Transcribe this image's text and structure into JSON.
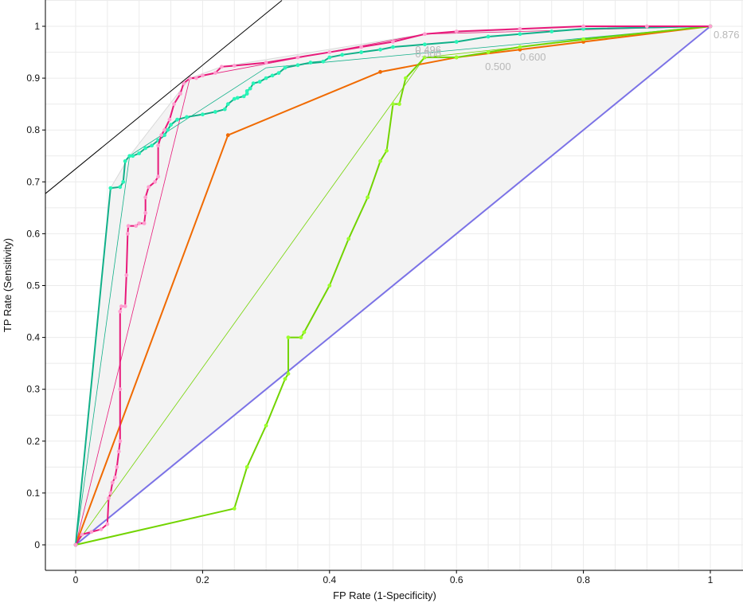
{
  "chart_data": {
    "type": "line",
    "xlabel": "FP Rate (1-Specificity)",
    "ylabel": "TP Rate (Sensitivity)",
    "xlim": [
      -0.05,
      1.05
    ],
    "ylim": [
      -0.05,
      1.04
    ],
    "x_ticks": [
      "0",
      "0.2",
      "0.4",
      "0.6",
      "0.8",
      "1"
    ],
    "y_ticks": [
      "0",
      "0.1",
      "0.2",
      "0.3",
      "0.4",
      "0.5",
      "0.6",
      "0.7",
      "0.8",
      "0.9",
      "1"
    ],
    "grid": true,
    "legend": "none",
    "threshold_labels": [
      {
        "text": "0.876",
        "x": 1.0,
        "y": 0.983
      },
      {
        "text": "0.600",
        "x": 0.695,
        "y": 0.94
      },
      {
        "text": "0.500",
        "x": 0.64,
        "y": 0.922
      },
      {
        "text": "0.496",
        "x": 0.53,
        "y": 0.954
      },
      {
        "text": "0.500",
        "x": 0.53,
        "y": 0.946
      }
    ],
    "iso_performance_line": {
      "color": "#000000",
      "points": [
        [
          -0.05,
          0.675
        ],
        [
          0.325,
          1.05
        ]
      ]
    },
    "series": [
      {
        "color": "#e8197a",
        "marker_color": "#ff9fd0",
        "points": [
          [
            0,
            0
          ],
          [
            0.01,
            0.02
          ],
          [
            0.025,
            0.025
          ],
          [
            0.04,
            0.03
          ],
          [
            0.05,
            0.04
          ],
          [
            0.052,
            0.09
          ],
          [
            0.055,
            0.1
          ],
          [
            0.058,
            0.12
          ],
          [
            0.062,
            0.13
          ],
          [
            0.065,
            0.15
          ],
          [
            0.068,
            0.18
          ],
          [
            0.07,
            0.2
          ],
          [
            0.07,
            0.3
          ],
          [
            0.07,
            0.45
          ],
          [
            0.072,
            0.46
          ],
          [
            0.078,
            0.46
          ],
          [
            0.08,
            0.52
          ],
          [
            0.082,
            0.6
          ],
          [
            0.083,
            0.615
          ],
          [
            0.095,
            0.615
          ],
          [
            0.1,
            0.62
          ],
          [
            0.108,
            0.62
          ],
          [
            0.11,
            0.64
          ],
          [
            0.11,
            0.67
          ],
          [
            0.115,
            0.69
          ],
          [
            0.125,
            0.7
          ],
          [
            0.13,
            0.71
          ],
          [
            0.13,
            0.77
          ],
          [
            0.135,
            0.79
          ],
          [
            0.14,
            0.8
          ],
          [
            0.148,
            0.82
          ],
          [
            0.155,
            0.85
          ],
          [
            0.165,
            0.87
          ],
          [
            0.17,
            0.89
          ],
          [
            0.18,
            0.9
          ],
          [
            0.19,
            0.9
          ],
          [
            0.2,
            0.905
          ],
          [
            0.22,
            0.91
          ],
          [
            0.23,
            0.922
          ],
          [
            0.25,
            0.924
          ],
          [
            0.3,
            0.93
          ],
          [
            0.35,
            0.94
          ],
          [
            0.4,
            0.95
          ],
          [
            0.45,
            0.96
          ],
          [
            0.5,
            0.97
          ],
          [
            0.55,
            0.985
          ],
          [
            0.6,
            0.99
          ],
          [
            0.7,
            0.995
          ],
          [
            0.8,
            1.0
          ],
          [
            0.9,
            1.0
          ],
          [
            1,
            1
          ]
        ]
      },
      {
        "color": "#11b089",
        "marker_color": "#29f5b8",
        "points": [
          [
            0,
            0
          ],
          [
            0.055,
            0.688
          ],
          [
            0.07,
            0.69
          ],
          [
            0.075,
            0.7
          ],
          [
            0.078,
            0.74
          ],
          [
            0.085,
            0.75
          ],
          [
            0.09,
            0.75
          ],
          [
            0.1,
            0.755
          ],
          [
            0.11,
            0.765
          ],
          [
            0.12,
            0.77
          ],
          [
            0.13,
            0.78
          ],
          [
            0.14,
            0.79
          ],
          [
            0.145,
            0.8
          ],
          [
            0.15,
            0.81
          ],
          [
            0.16,
            0.82
          ],
          [
            0.175,
            0.825
          ],
          [
            0.2,
            0.83
          ],
          [
            0.22,
            0.835
          ],
          [
            0.235,
            0.84
          ],
          [
            0.24,
            0.85
          ],
          [
            0.25,
            0.86
          ],
          [
            0.255,
            0.862
          ],
          [
            0.265,
            0.865
          ],
          [
            0.27,
            0.87
          ],
          [
            0.27,
            0.875
          ],
          [
            0.275,
            0.88
          ],
          [
            0.28,
            0.89
          ],
          [
            0.29,
            0.893
          ],
          [
            0.3,
            0.9
          ],
          [
            0.31,
            0.905
          ],
          [
            0.32,
            0.91
          ],
          [
            0.33,
            0.92
          ],
          [
            0.35,
            0.925
          ],
          [
            0.37,
            0.93
          ],
          [
            0.39,
            0.932
          ],
          [
            0.4,
            0.94
          ],
          [
            0.42,
            0.945
          ],
          [
            0.45,
            0.95
          ],
          [
            0.48,
            0.955
          ],
          [
            0.5,
            0.96
          ],
          [
            0.55,
            0.965
          ],
          [
            0.6,
            0.97
          ],
          [
            0.65,
            0.98
          ],
          [
            0.7,
            0.985
          ],
          [
            0.75,
            0.99
          ],
          [
            0.8,
            0.995
          ],
          [
            1,
            1
          ]
        ]
      },
      {
        "color": "#f06a00",
        "marker_color": "#f06a00",
        "points": [
          [
            0,
            0
          ],
          [
            0.24,
            0.79
          ],
          [
            0.48,
            0.912
          ],
          [
            0.6,
            0.94
          ],
          [
            0.7,
            0.955
          ],
          [
            0.8,
            0.97
          ],
          [
            1,
            1
          ]
        ]
      },
      {
        "color": "#72d400",
        "marker_color": "#9bff2a",
        "points": [
          [
            0,
            0
          ],
          [
            0.25,
            0.07
          ],
          [
            0.27,
            0.15
          ],
          [
            0.3,
            0.23
          ],
          [
            0.33,
            0.32
          ],
          [
            0.335,
            0.33
          ],
          [
            0.335,
            0.4
          ],
          [
            0.355,
            0.4
          ],
          [
            0.36,
            0.41
          ],
          [
            0.4,
            0.5
          ],
          [
            0.43,
            0.59
          ],
          [
            0.46,
            0.67
          ],
          [
            0.48,
            0.74
          ],
          [
            0.49,
            0.76
          ],
          [
            0.5,
            0.85
          ],
          [
            0.51,
            0.85
          ],
          [
            0.52,
            0.9
          ],
          [
            0.55,
            0.94
          ],
          [
            0.6,
            0.94
          ],
          [
            0.65,
            0.95
          ],
          [
            0.7,
            0.96
          ],
          [
            0.8,
            0.975
          ],
          [
            1,
            1
          ]
        ]
      },
      {
        "color": "#7b72e6",
        "marker_color": "#7b72e6",
        "points": [
          [
            0,
            0
          ],
          [
            1,
            1
          ]
        ]
      }
    ]
  }
}
